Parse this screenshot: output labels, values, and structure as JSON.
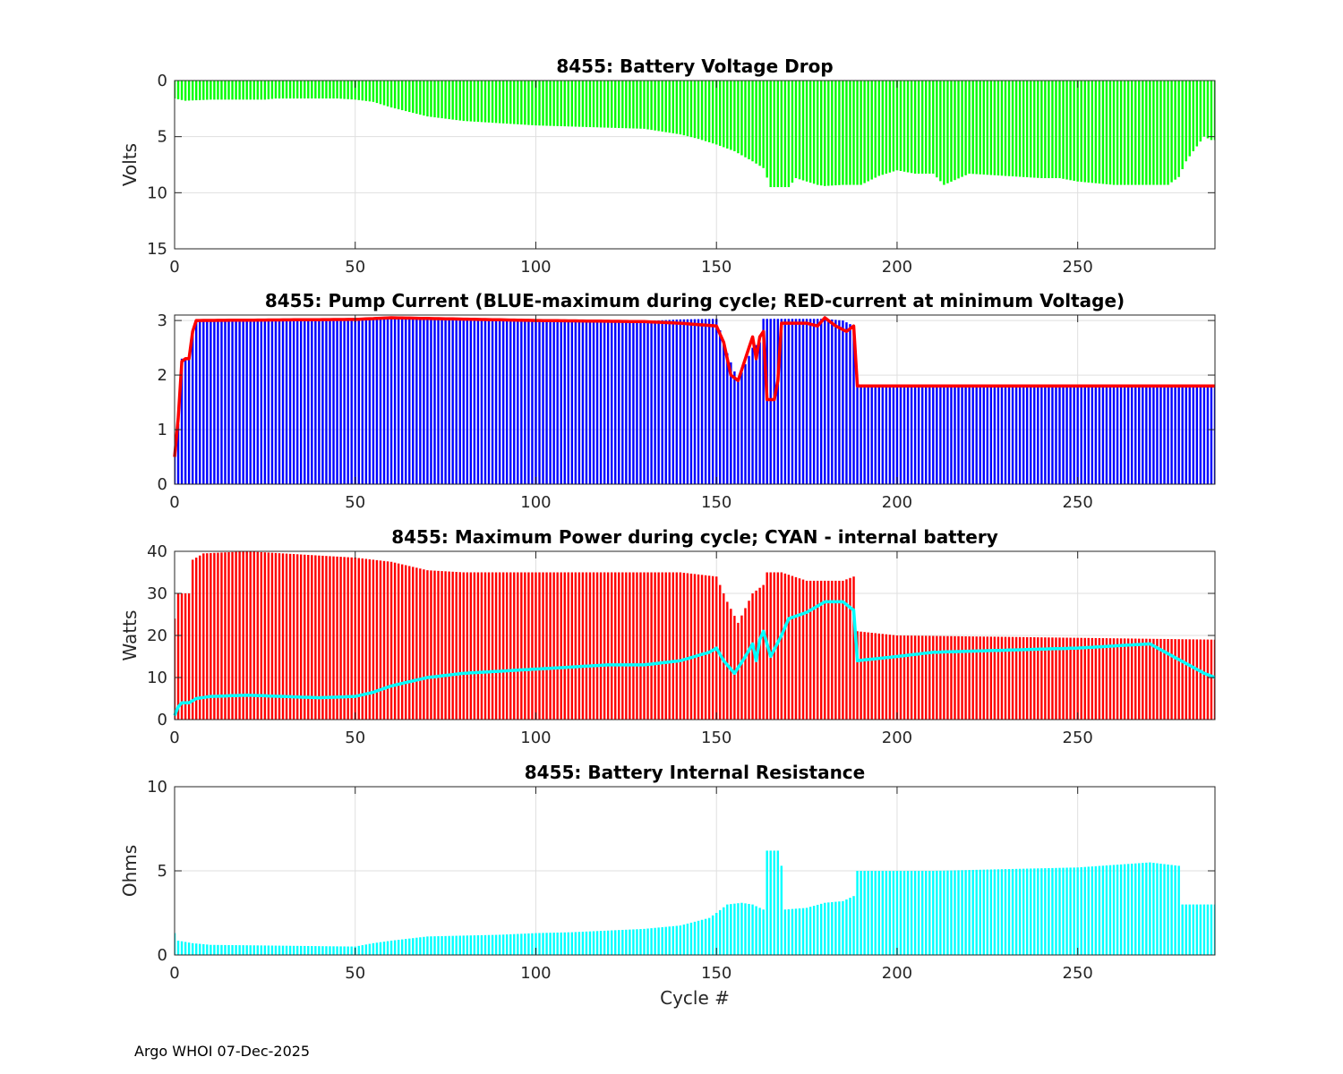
{
  "figure": {
    "footer": "Argo WHOI 07-Dec-2025",
    "xlabel": "Cycle #"
  },
  "chart_data": [
    {
      "type": "bar",
      "title": "8455: Battery Voltage Drop",
      "ylabel": "Volts",
      "xlim": [
        0,
        288
      ],
      "ylim": [
        0,
        15
      ],
      "y_reversed": true,
      "xticks": [
        "0",
        "50",
        "100",
        "150",
        "200",
        "250"
      ],
      "yticks": [
        "0",
        "5",
        "10",
        "15"
      ],
      "grid": true,
      "series": [
        {
          "name": "voltage drop",
          "color": "#00ff00",
          "style": "bars",
          "knots": [
            [
              0,
              1.6
            ],
            [
              3,
              1.8
            ],
            [
              10,
              1.7
            ],
            [
              25,
              1.7
            ],
            [
              28,
              1.6
            ],
            [
              45,
              1.6
            ],
            [
              50,
              1.7
            ],
            [
              55,
              1.9
            ],
            [
              60,
              2.4
            ],
            [
              70,
              3.2
            ],
            [
              80,
              3.6
            ],
            [
              90,
              3.8
            ],
            [
              100,
              4.0
            ],
            [
              110,
              4.1
            ],
            [
              120,
              4.2
            ],
            [
              130,
              4.3
            ],
            [
              140,
              4.8
            ],
            [
              145,
              5.2
            ],
            [
              150,
              5.7
            ],
            [
              155,
              6.3
            ],
            [
              160,
              7.2
            ],
            [
              163,
              7.8
            ],
            [
              165,
              9.5
            ],
            [
              170,
              9.5
            ],
            [
              172,
              8.7
            ],
            [
              178,
              9.3
            ],
            [
              180,
              9.4
            ],
            [
              185,
              9.3
            ],
            [
              190,
              9.3
            ],
            [
              195,
              8.5
            ],
            [
              200,
              8.0
            ],
            [
              205,
              8.3
            ],
            [
              210,
              8.3
            ],
            [
              213,
              9.3
            ],
            [
              220,
              8.3
            ],
            [
              230,
              8.5
            ],
            [
              240,
              8.7
            ],
            [
              245,
              8.7
            ],
            [
              250,
              9.0
            ],
            [
              260,
              9.3
            ],
            [
              270,
              9.3
            ],
            [
              275,
              9.3
            ],
            [
              278,
              8.6
            ],
            [
              280,
              7.2
            ],
            [
              282,
              6.3
            ],
            [
              285,
              5.0
            ],
            [
              287,
              5.3
            ]
          ]
        }
      ]
    },
    {
      "type": "bar",
      "title": "8455: Pump Current (BLUE-maximum during cycle; RED-current at minimum Voltage)",
      "ylabel": "",
      "xlim": [
        0,
        288
      ],
      "ylim": [
        0,
        3.1
      ],
      "xticks": [
        "0",
        "50",
        "100",
        "150",
        "200",
        "250"
      ],
      "yticks": [
        "0",
        "1",
        "2",
        "3"
      ],
      "grid": true,
      "series": [
        {
          "name": "BLUE-maximum during cycle",
          "color": "#0000ff",
          "style": "bars",
          "knots": [
            [
              0,
              0.5
            ],
            [
              1,
              1.1
            ],
            [
              2,
              2.3
            ],
            [
              3,
              2.3
            ],
            [
              4,
              2.3
            ],
            [
              5,
              2.8
            ],
            [
              6,
              3.0
            ],
            [
              50,
              3.02
            ],
            [
              60,
              3.05
            ],
            [
              100,
              3.0
            ],
            [
              130,
              2.99
            ],
            [
              140,
              3.02
            ],
            [
              150,
              3.03
            ],
            [
              153,
              2.4
            ],
            [
              156,
              1.9
            ],
            [
              160,
              2.5
            ],
            [
              162,
              2.6
            ],
            [
              163,
              3.03
            ],
            [
              168,
              3.03
            ],
            [
              180,
              3.03
            ],
            [
              185,
              3.0
            ],
            [
              188,
              2.9
            ],
            [
              189,
              1.8
            ],
            [
              288,
              1.8
            ]
          ]
        },
        {
          "name": "RED-current at minimum Voltage",
          "color": "#ff0000",
          "style": "line",
          "knots": [
            [
              0,
              0.5
            ],
            [
              1,
              1.2
            ],
            [
              2,
              2.25
            ],
            [
              3,
              2.3
            ],
            [
              4,
              2.3
            ],
            [
              5,
              2.8
            ],
            [
              6,
              3.0
            ],
            [
              50,
              3.02
            ],
            [
              60,
              3.05
            ],
            [
              100,
              3.0
            ],
            [
              130,
              2.98
            ],
            [
              140,
              2.95
            ],
            [
              150,
              2.9
            ],
            [
              152,
              2.6
            ],
            [
              154,
              2.0
            ],
            [
              156,
              1.9
            ],
            [
              158,
              2.3
            ],
            [
              160,
              2.7
            ],
            [
              161,
              2.3
            ],
            [
              162,
              2.7
            ],
            [
              163,
              2.8
            ],
            [
              164,
              1.55
            ],
            [
              166,
              1.55
            ],
            [
              167,
              1.9
            ],
            [
              168,
              2.95
            ],
            [
              175,
              2.95
            ],
            [
              178,
              2.9
            ],
            [
              180,
              3.05
            ],
            [
              183,
              2.9
            ],
            [
              186,
              2.8
            ],
            [
              188,
              2.9
            ],
            [
              189,
              1.8
            ],
            [
              290,
              1.8
            ]
          ]
        }
      ]
    },
    {
      "type": "bar",
      "title": "8455: Maximum Power during cycle; CYAN - internal battery",
      "ylabel": "Watts",
      "xlim": [
        0,
        288
      ],
      "ylim": [
        0,
        40
      ],
      "xticks": [
        "0",
        "50",
        "100",
        "150",
        "200",
        "250"
      ],
      "yticks": [
        "0",
        "10",
        "20",
        "30",
        "40"
      ],
      "grid": true,
      "series": [
        {
          "name": "maximum power",
          "color": "#ff0000",
          "style": "bars",
          "knots": [
            [
              0,
              24
            ],
            [
              1,
              30
            ],
            [
              4,
              30
            ],
            [
              5,
              38
            ],
            [
              8,
              39.5
            ],
            [
              20,
              40
            ],
            [
              40,
              39
            ],
            [
              50,
              38.5
            ],
            [
              60,
              37.5
            ],
            [
              70,
              35.5
            ],
            [
              80,
              35
            ],
            [
              100,
              35
            ],
            [
              130,
              35
            ],
            [
              140,
              35
            ],
            [
              150,
              34
            ],
            [
              153,
              28
            ],
            [
              156,
              23
            ],
            [
              160,
              30
            ],
            [
              163,
              32
            ],
            [
              164,
              35
            ],
            [
              168,
              35
            ],
            [
              175,
              33
            ],
            [
              180,
              33
            ],
            [
              185,
              33
            ],
            [
              188,
              34
            ],
            [
              189,
              21
            ],
            [
              200,
              20
            ],
            [
              288,
              19
            ]
          ]
        },
        {
          "name": "CYAN - internal battery",
          "color": "#00ffff",
          "style": "line",
          "knots": [
            [
              0,
              1
            ],
            [
              1,
              3
            ],
            [
              2,
              4
            ],
            [
              4,
              4
            ],
            [
              6,
              5
            ],
            [
              10,
              5.5
            ],
            [
              20,
              5.8
            ],
            [
              30,
              5.5
            ],
            [
              40,
              5.2
            ],
            [
              50,
              5.5
            ],
            [
              55,
              6.5
            ],
            [
              60,
              8
            ],
            [
              70,
              10
            ],
            [
              80,
              11
            ],
            [
              90,
              11.5
            ],
            [
              100,
              12
            ],
            [
              110,
              12.5
            ],
            [
              120,
              13
            ],
            [
              130,
              13
            ],
            [
              140,
              14
            ],
            [
              148,
              16
            ],
            [
              150,
              17
            ],
            [
              152,
              14
            ],
            [
              155,
              11
            ],
            [
              158,
              15
            ],
            [
              160,
              18
            ],
            [
              161,
              14
            ],
            [
              162,
              19
            ],
            [
              163,
              21
            ],
            [
              165,
              15
            ],
            [
              168,
              20
            ],
            [
              170,
              24
            ],
            [
              175,
              25.5
            ],
            [
              180,
              28
            ],
            [
              185,
              28
            ],
            [
              188,
              26
            ],
            [
              189,
              14
            ],
            [
              200,
              15
            ],
            [
              210,
              16
            ],
            [
              250,
              17
            ],
            [
              270,
              18
            ],
            [
              285,
              11
            ],
            [
              288,
              10
            ]
          ]
        }
      ]
    },
    {
      "type": "bar",
      "title": "8455: Battery Internal Resistance",
      "ylabel": "Ohms",
      "xlabel": "Cycle #",
      "xlim": [
        0,
        288
      ],
      "ylim": [
        0,
        10
      ],
      "xticks": [
        "0",
        "50",
        "100",
        "150",
        "200",
        "250"
      ],
      "yticks": [
        "0",
        "5",
        "10"
      ],
      "grid": true,
      "series": [
        {
          "name": "internal resistance",
          "color": "#00ffff",
          "style": "bars",
          "knots": [
            [
              0,
              1.3
            ],
            [
              1,
              0.85
            ],
            [
              5,
              0.7
            ],
            [
              10,
              0.6
            ],
            [
              50,
              0.5
            ],
            [
              55,
              0.7
            ],
            [
              60,
              0.85
            ],
            [
              70,
              1.1
            ],
            [
              80,
              1.15
            ],
            [
              90,
              1.2
            ],
            [
              100,
              1.3
            ],
            [
              110,
              1.35
            ],
            [
              120,
              1.45
            ],
            [
              130,
              1.55
            ],
            [
              140,
              1.75
            ],
            [
              148,
              2.2
            ],
            [
              150,
              2.5
            ],
            [
              153,
              3.0
            ],
            [
              157,
              3.1
            ],
            [
              160,
              3.0
            ],
            [
              163,
              2.7
            ],
            [
              164,
              6.2
            ],
            [
              167,
              6.2
            ],
            [
              168,
              5.3
            ],
            [
              169,
              2.7
            ],
            [
              175,
              2.8
            ],
            [
              180,
              3.1
            ],
            [
              185,
              3.2
            ],
            [
              188,
              3.5
            ],
            [
              189,
              5.0
            ],
            [
              210,
              5.0
            ],
            [
              250,
              5.2
            ],
            [
              270,
              5.5
            ],
            [
              278,
              5.3
            ],
            [
              279,
              3.0
            ],
            [
              288,
              3.0
            ]
          ]
        }
      ]
    }
  ]
}
